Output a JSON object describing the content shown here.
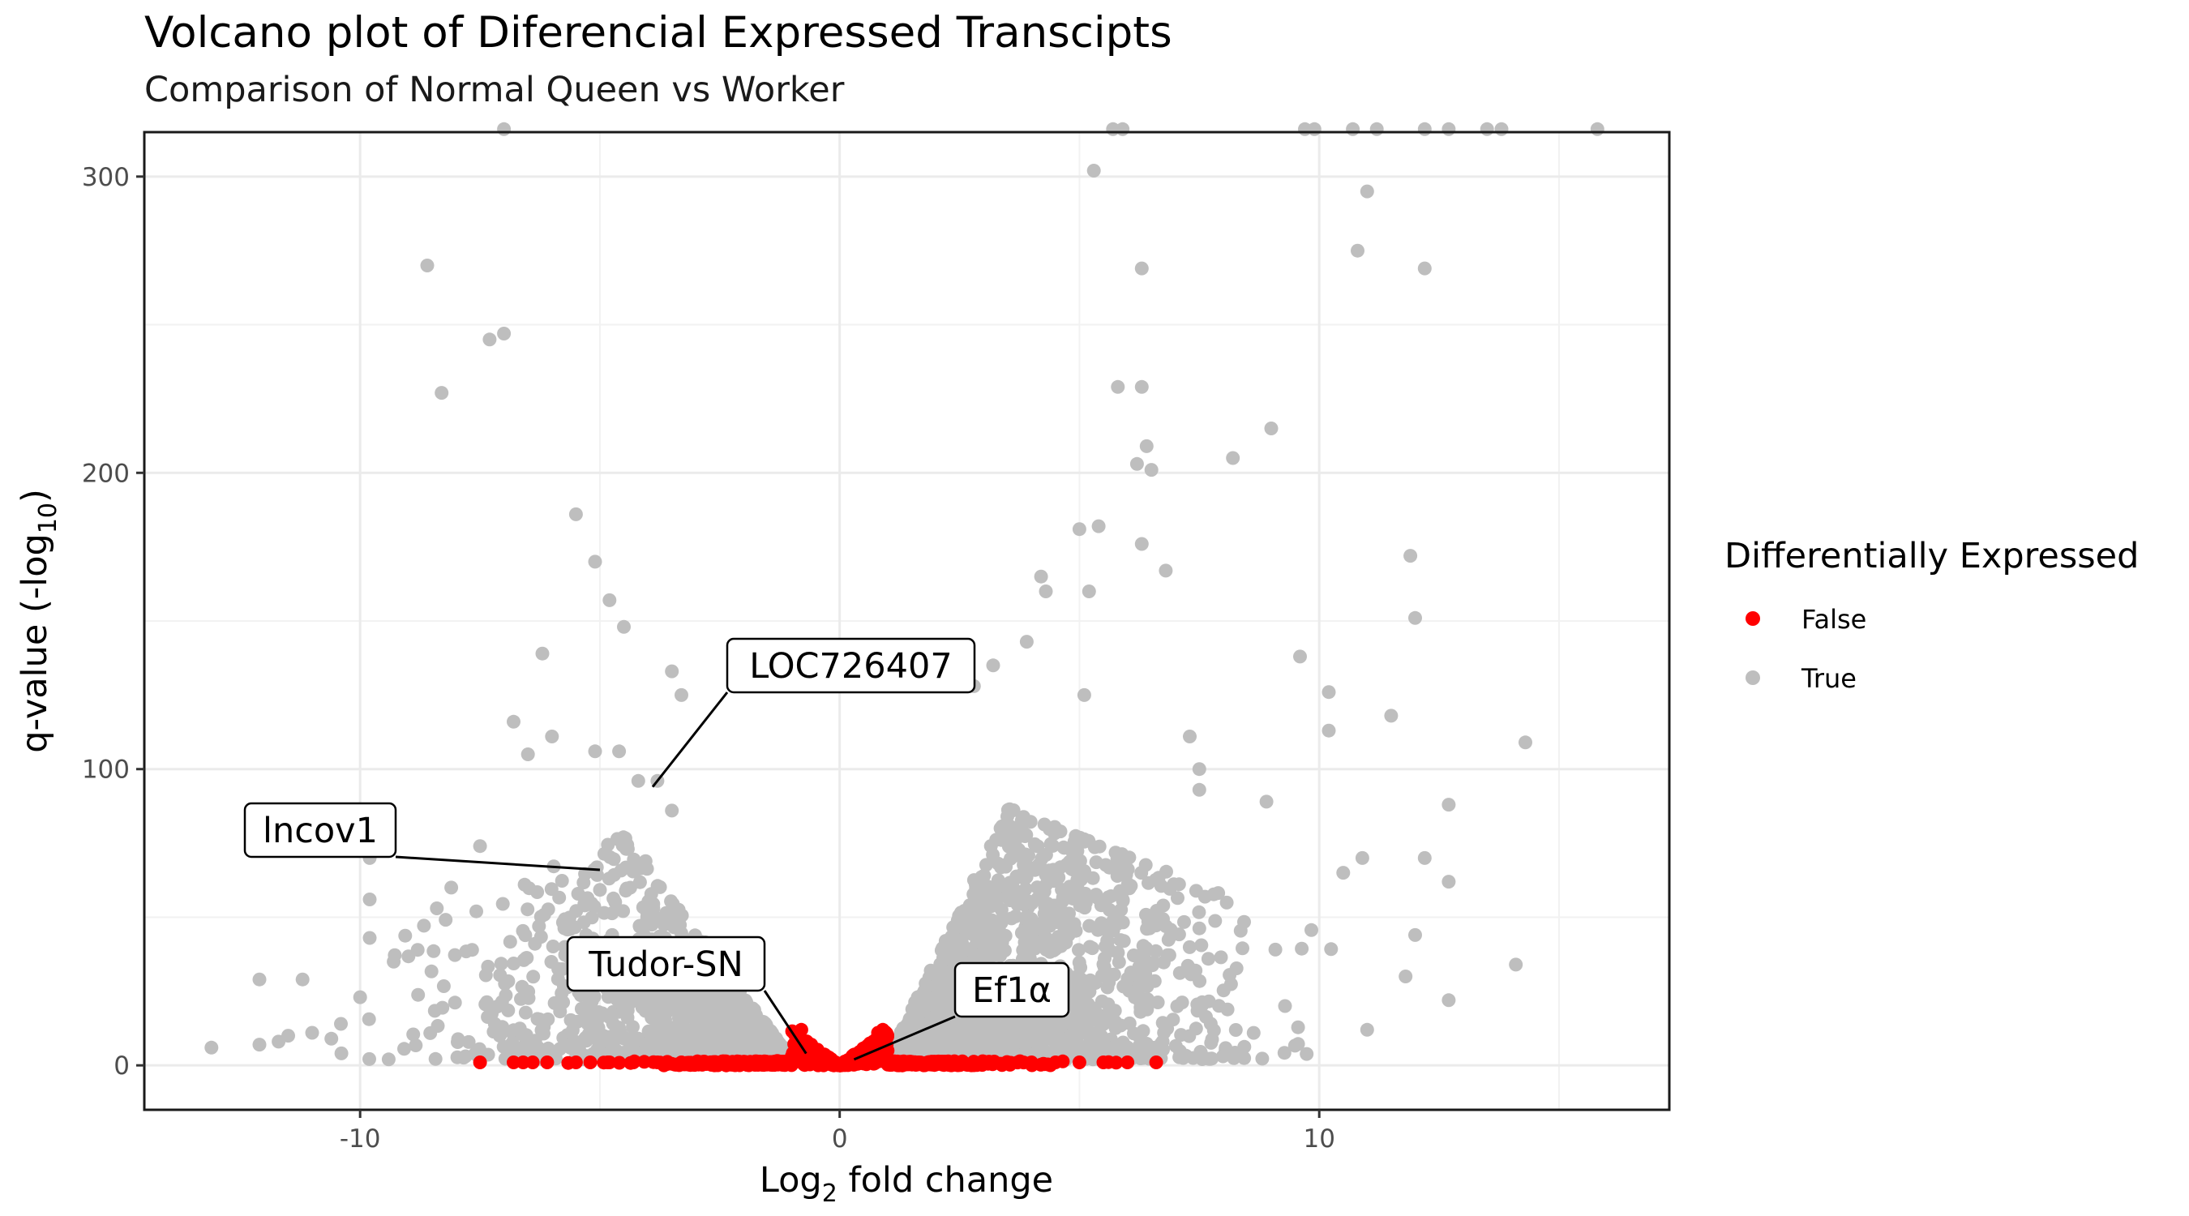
{
  "chart_data": {
    "type": "scatter",
    "title": "Volcano plot of Diferencial Expressed Transcipts",
    "subtitle": "Comparison of Normal Queen vs Worker",
    "xlabel_main": "Log",
    "xlabel_sub": "2",
    "xlabel_tail": " fold change",
    "ylabel_main": "q-value (-log",
    "ylabel_sub": "10",
    "ylabel_tail": ")",
    "xlim": [
      -14.5,
      17.3
    ],
    "ylim": [
      -15,
      315
    ],
    "x_ticks": [
      -10,
      0,
      10
    ],
    "x_tick_labels": [
      "-10",
      "0",
      "10"
    ],
    "y_ticks": [
      0,
      100,
      200,
      300
    ],
    "y_tick_labels": [
      "0",
      "100",
      "200",
      "300"
    ],
    "grid": true,
    "legend": {
      "title": "Differentially Expressed",
      "position": "right",
      "items": [
        {
          "label": "False",
          "color": "#ff0000"
        },
        {
          "label": "True",
          "color": "#bebebe"
        }
      ]
    },
    "colors": {
      "false": "#ff0000",
      "true": "#bebebe"
    },
    "series": [
      {
        "name": "False",
        "color": "#ff0000",
        "points": [
          [
            -7.5,
            1
          ],
          [
            -6.8,
            1
          ],
          [
            -6.6,
            1
          ],
          [
            -6.4,
            1
          ],
          [
            -6.1,
            1
          ],
          [
            -5.5,
            1
          ],
          [
            -5.2,
            1
          ],
          [
            -4.8,
            1
          ],
          [
            -4.3,
            1
          ],
          [
            -3.8,
            1
          ],
          [
            -3.3,
            1
          ],
          [
            -2.8,
            1
          ],
          [
            -2.3,
            1
          ],
          [
            -1.8,
            1
          ],
          [
            -1.3,
            1.5
          ],
          [
            -1.0,
            3
          ],
          [
            -0.9,
            6
          ],
          [
            -0.85,
            10
          ],
          [
            -0.8,
            12
          ],
          [
            -0.7,
            8
          ],
          [
            -0.5,
            4
          ],
          [
            -0.3,
            2
          ],
          [
            0,
            0.5
          ],
          [
            0.3,
            2
          ],
          [
            0.5,
            4
          ],
          [
            0.7,
            8
          ],
          [
            0.8,
            11
          ],
          [
            0.9,
            12
          ],
          [
            1.0,
            5
          ],
          [
            1.5,
            1
          ],
          [
            2.0,
            1
          ],
          [
            2.5,
            1
          ],
          [
            3.0,
            1
          ],
          [
            3.5,
            1
          ],
          [
            4.0,
            1
          ],
          [
            4.5,
            1
          ],
          [
            5.0,
            1
          ],
          [
            5.5,
            1
          ],
          [
            6.0,
            1
          ],
          [
            6.6,
            1
          ]
        ]
      },
      {
        "name": "True",
        "color": "#bebebe",
        "points": [
          [
            -13.1,
            6
          ],
          [
            -12.1,
            7
          ],
          [
            -12.1,
            29
          ],
          [
            -11.2,
            29
          ],
          [
            -11.5,
            10
          ],
          [
            -10.6,
            9
          ],
          [
            -10.0,
            23
          ],
          [
            -9.8,
            56
          ],
          [
            -9.8,
            70
          ],
          [
            -9.8,
            43
          ],
          [
            -8.6,
            270
          ],
          [
            -8.3,
            227
          ],
          [
            -7.5,
            74
          ],
          [
            -7.3,
            245
          ],
          [
            -7.0,
            247
          ],
          [
            -7.0,
            316
          ],
          [
            -6.2,
            139
          ],
          [
            -5.5,
            186
          ],
          [
            -5.1,
            170
          ],
          [
            -4.8,
            157
          ],
          [
            -4.5,
            148
          ],
          [
            -3.5,
            133
          ],
          [
            -3.3,
            125
          ],
          [
            -6.8,
            116
          ],
          [
            -6.5,
            105
          ],
          [
            -6.0,
            111
          ],
          [
            -5.1,
            106
          ],
          [
            -4.6,
            106
          ],
          [
            -4.2,
            96
          ],
          [
            -3.8,
            96
          ],
          [
            -3.5,
            86
          ],
          [
            -8.1,
            60
          ],
          [
            -8.4,
            53
          ],
          [
            -8.8,
            39
          ],
          [
            -9.3,
            35
          ],
          [
            -10.4,
            14
          ],
          [
            -11.0,
            11
          ],
          [
            -11.7,
            8
          ],
          [
            5.3,
            302
          ],
          [
            5.7,
            316
          ],
          [
            5.9,
            316
          ],
          [
            6.3,
            269
          ],
          [
            5.8,
            229
          ],
          [
            6.3,
            229
          ],
          [
            6.4,
            209
          ],
          [
            6.5,
            201
          ],
          [
            6.2,
            203
          ],
          [
            8.2,
            205
          ],
          [
            9.0,
            215
          ],
          [
            9.7,
            316
          ],
          [
            9.9,
            316
          ],
          [
            10.7,
            316
          ],
          [
            11.0,
            295
          ],
          [
            10.8,
            275
          ],
          [
            12.2,
            269
          ],
          [
            11.9,
            172
          ],
          [
            12.0,
            151
          ],
          [
            11.5,
            118
          ],
          [
            10.2,
            126
          ],
          [
            10.2,
            113
          ],
          [
            14.3,
            109
          ],
          [
            14.1,
            34
          ],
          [
            12.7,
            88
          ],
          [
            12.7,
            62
          ],
          [
            12.7,
            22
          ],
          [
            12.2,
            70
          ],
          [
            12.0,
            44
          ],
          [
            11.8,
            30
          ],
          [
            11.0,
            12
          ],
          [
            10.9,
            70
          ],
          [
            10.5,
            65
          ],
          [
            12.2,
            316
          ],
          [
            12.7,
            316
          ],
          [
            13.5,
            316
          ],
          [
            13.8,
            316
          ],
          [
            15.8,
            316
          ],
          [
            11.2,
            316
          ],
          [
            9.6,
            138
          ],
          [
            8.9,
            89
          ],
          [
            7.5,
            100
          ],
          [
            7.3,
            111
          ],
          [
            7.5,
            93
          ],
          [
            6.8,
            167
          ],
          [
            6.3,
            176
          ],
          [
            5.0,
            181
          ],
          [
            5.4,
            182
          ],
          [
            4.2,
            165
          ],
          [
            4.3,
            160
          ],
          [
            3.9,
            143
          ],
          [
            3.2,
            135
          ],
          [
            2.8,
            128
          ],
          [
            5.1,
            125
          ],
          [
            5.2,
            160
          ]
        ]
      }
    ],
    "annotations": [
      {
        "label": "LOC726407",
        "point": [
          -3.9,
          94
        ]
      },
      {
        "label": "lncov1",
        "point": [
          -5.0,
          66
        ]
      },
      {
        "label": "Tudor-SN",
        "point": [
          -0.7,
          4
        ]
      },
      {
        "label": "Ef1α",
        "point": [
          0.3,
          2
        ]
      }
    ],
    "cloud": {
      "note": "dense fill of grey points under the V-shaped boundary and red points near q=0",
      "true_count": 2600,
      "false_count": 700,
      "seed": 7
    }
  }
}
